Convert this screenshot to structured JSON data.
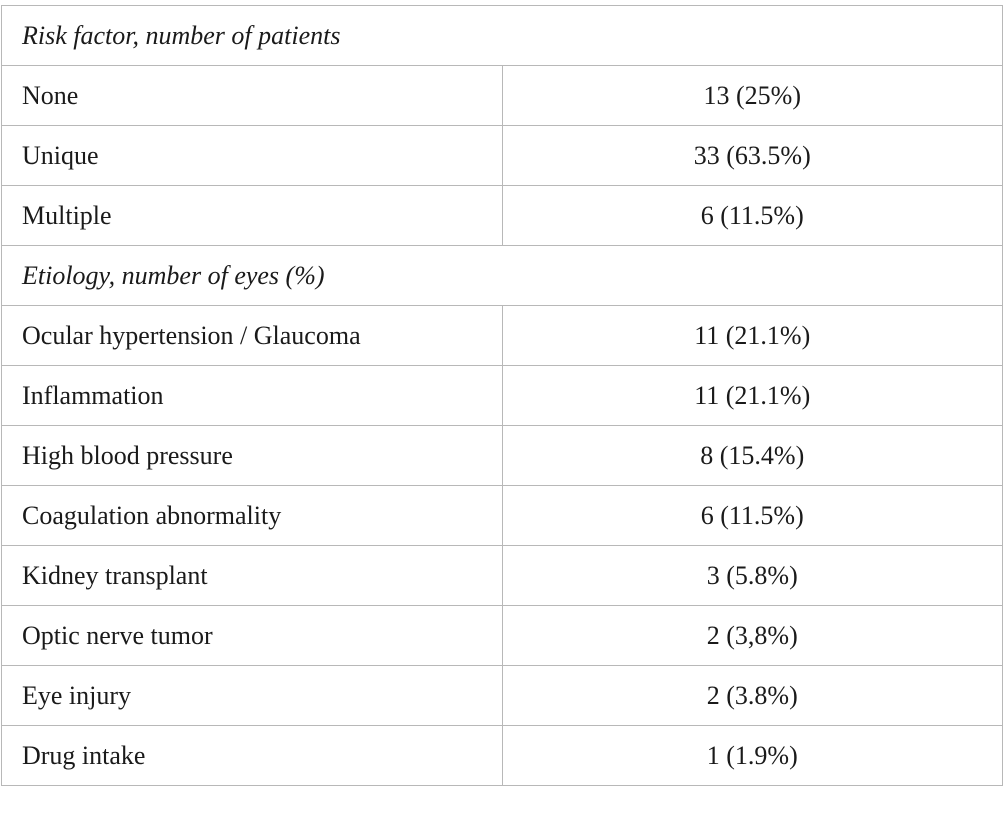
{
  "sections": [
    {
      "title": "Risk factor, number of patients",
      "rows": [
        {
          "label": "None",
          "value": "13 (25%)"
        },
        {
          "label": "Unique",
          "value": "33 (63.5%)"
        },
        {
          "label": "Multiple",
          "value": "6 (11.5%)"
        }
      ]
    },
    {
      "title": "Etiology, number of eyes (%)",
      "rows": [
        {
          "label": "Ocular hypertension / Glaucoma",
          "value": "11 (21.1%)"
        },
        {
          "label": "Inflammation",
          "value": "11 (21.1%)"
        },
        {
          "label": "High blood pressure",
          "value": "8 (15.4%)"
        },
        {
          "label": "Coagulation abnormality",
          "value": "6 (11.5%)"
        },
        {
          "label": "Kidney transplant",
          "value": "3 (5.8%)"
        },
        {
          "label": "Optic nerve tumor",
          "value": "2 (3,8%)"
        },
        {
          "label": "Eye injury",
          "value": "2 (3.8%)"
        },
        {
          "label": "Drug intake",
          "value": "1 (1.9%)"
        }
      ]
    }
  ]
}
